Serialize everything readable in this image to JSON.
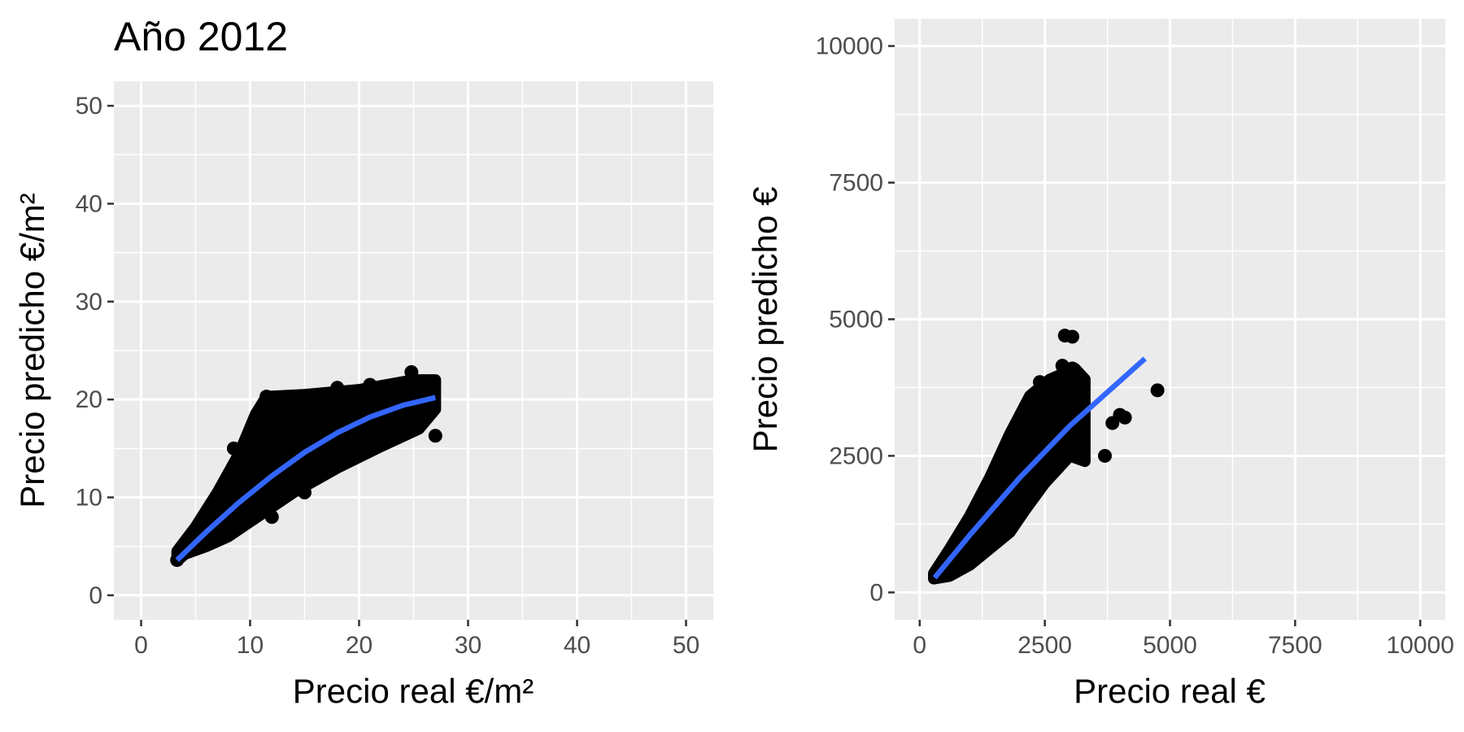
{
  "chart_data": [
    {
      "type": "scatter",
      "title": "Año 2012",
      "xlabel": "Precio real  €/m²",
      "ylabel": "Precio predicho €/m²",
      "xlim": [
        -2.5,
        52.5
      ],
      "ylim": [
        -2.5,
        52.5
      ],
      "x_ticks": [
        0,
        10,
        20,
        30,
        40,
        50
      ],
      "y_ticks": [
        0,
        10,
        20,
        30,
        40,
        50
      ],
      "grid": true,
      "point_color": "#000000",
      "scatter_cloud": {
        "upper": [
          [
            3.3,
            4.5
          ],
          [
            5,
            7
          ],
          [
            7,
            10.5
          ],
          [
            9,
            14.5
          ],
          [
            10.5,
            18.5
          ],
          [
            11.5,
            20.3
          ],
          [
            15,
            20.5
          ],
          [
            20,
            21
          ],
          [
            25,
            22
          ],
          [
            27,
            22
          ]
        ],
        "lower": [
          [
            27,
            19
          ],
          [
            25.5,
            17
          ],
          [
            22,
            15.2
          ],
          [
            18,
            13
          ],
          [
            14,
            10.5
          ],
          [
            10,
            7.5
          ],
          [
            8,
            6
          ],
          [
            6,
            5
          ],
          [
            4,
            4.2
          ],
          [
            3.3,
            3.5
          ]
        ]
      },
      "points": [
        {
          "x": 11.5,
          "y": 20.3
        },
        {
          "x": 24.8,
          "y": 22.8
        },
        {
          "x": 27.0,
          "y": 16.3
        },
        {
          "x": 26.8,
          "y": 19.2
        },
        {
          "x": 3.3,
          "y": 3.6
        },
        {
          "x": 18.0,
          "y": 21.2
        },
        {
          "x": 21.0,
          "y": 21.5
        },
        {
          "x": 12.0,
          "y": 8.0
        },
        {
          "x": 15.0,
          "y": 10.5
        },
        {
          "x": 8.5,
          "y": 15.0
        }
      ],
      "fit": {
        "color": "#3366FF",
        "x": [
          3.3,
          6,
          9,
          12,
          15,
          18,
          21,
          24,
          27
        ],
        "y": [
          3.6,
          6.5,
          9.5,
          12.2,
          14.6,
          16.6,
          18.2,
          19.4,
          20.2
        ]
      }
    },
    {
      "type": "scatter",
      "title": "",
      "xlabel": "Precio real  €",
      "ylabel": "Precio predicho €",
      "xlim": [
        -500,
        10500
      ],
      "ylim": [
        -500,
        10500
      ],
      "x_ticks": [
        0,
        2500,
        5000,
        7500,
        10000
      ],
      "y_ticks": [
        0,
        2500,
        5000,
        7500,
        10000
      ],
      "grid": true,
      "point_color": "#000000",
      "scatter_cloud": {
        "upper": [
          [
            280,
            350
          ],
          [
            600,
            800
          ],
          [
            1000,
            1400
          ],
          [
            1400,
            2100
          ],
          [
            1800,
            2900
          ],
          [
            2200,
            3600
          ],
          [
            2600,
            3900
          ],
          [
            3100,
            4100
          ],
          [
            3300,
            3900
          ]
        ],
        "lower": [
          [
            3300,
            2400
          ],
          [
            3000,
            2500
          ],
          [
            2500,
            2000
          ],
          [
            2100,
            1500
          ],
          [
            1800,
            1100
          ],
          [
            1400,
            800
          ],
          [
            1000,
            500
          ],
          [
            600,
            300
          ],
          [
            280,
            250
          ]
        ]
      },
      "points": [
        {
          "x": 2900,
          "y": 4700
        },
        {
          "x": 3050,
          "y": 4680
        },
        {
          "x": 2850,
          "y": 4150
        },
        {
          "x": 3050,
          "y": 4100
        },
        {
          "x": 4750,
          "y": 3700
        },
        {
          "x": 4000,
          "y": 3250
        },
        {
          "x": 4100,
          "y": 3200
        },
        {
          "x": 3850,
          "y": 3100
        },
        {
          "x": 3700,
          "y": 2500
        },
        {
          "x": 2400,
          "y": 3850
        }
      ],
      "fit": {
        "color": "#3366FF",
        "x": [
          300,
          1000,
          2000,
          3000,
          4000,
          4500
        ],
        "y": [
          270,
          1050,
          2100,
          3050,
          3870,
          4280
        ]
      }
    }
  ]
}
